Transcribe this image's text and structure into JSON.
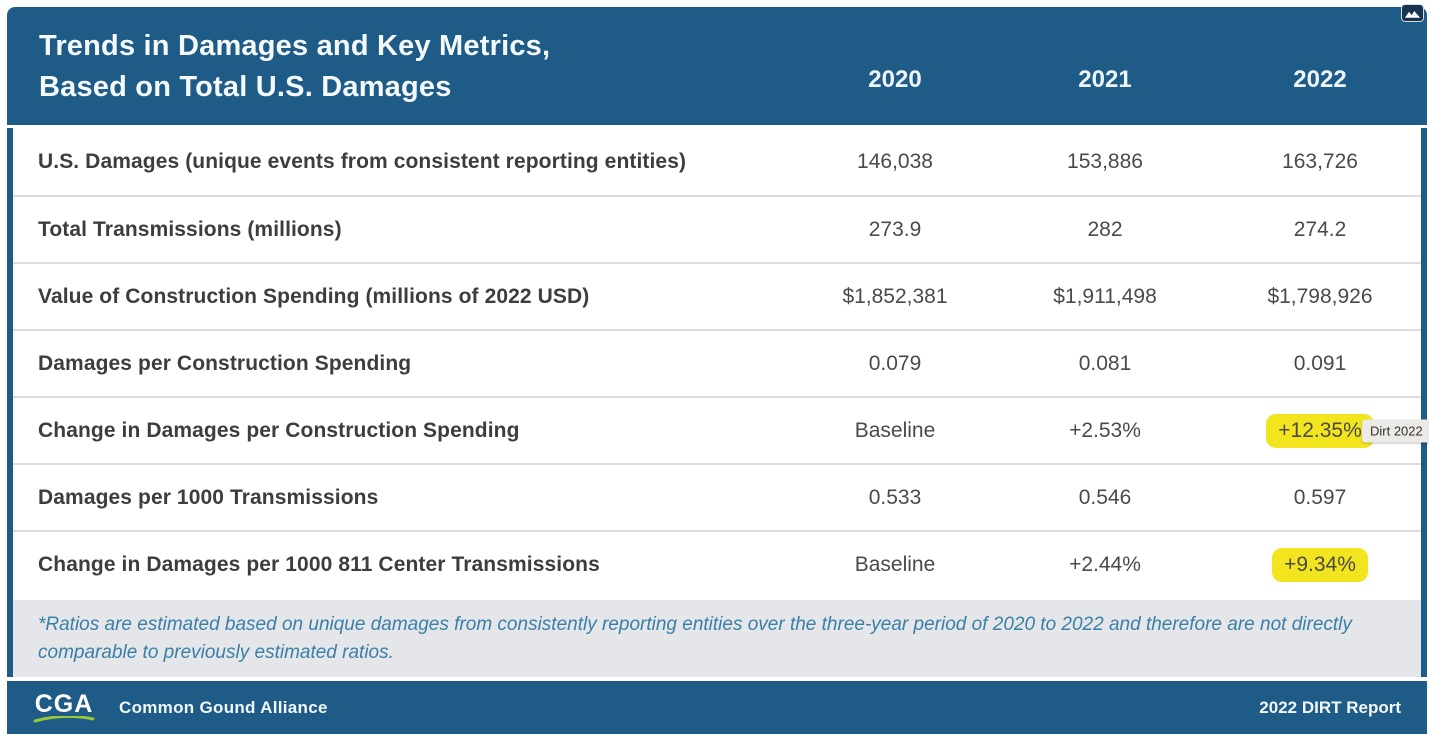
{
  "header": {
    "title_line1": "Trends in Damages and Key Metrics,",
    "title_line2": "Based on Total U.S. Damages",
    "years": [
      "2020",
      "2021",
      "2022"
    ]
  },
  "table": {
    "rows": [
      {
        "label": "U.S. Damages (unique events from consistent reporting entities)",
        "values": [
          "146,038",
          "153,886",
          "163,726"
        ]
      },
      {
        "label": "Total Transmissions (millions)",
        "values": [
          "273.9",
          "282",
          "274.2"
        ]
      },
      {
        "label": "Value of Construction Spending (millions of 2022 USD)",
        "values": [
          "$1,852,381",
          "$1,911,498",
          "$1,798,926"
        ]
      },
      {
        "label": "Damages per Construction Spending",
        "values": [
          "0.079",
          "0.081",
          "0.091"
        ]
      },
      {
        "label": "Change in Damages per Construction Spending",
        "values": [
          "Baseline",
          "+2.53%",
          "+12.35%"
        ],
        "highlight_col": 2,
        "annotation": "Dirt 2022"
      },
      {
        "label": "Damages per 1000 Transmissions",
        "values": [
          "0.533",
          "0.546",
          "0.597"
        ]
      },
      {
        "label": "Change in Damages per 1000 811 Center Transmissions",
        "values": [
          "Baseline",
          "+2.44%",
          "+9.34%"
        ],
        "highlight_col": 2
      }
    ]
  },
  "footnote": "*Ratios are estimated based on unique damages from consistently reporting entities over the three-year period of 2020 to 2022 and therefore are not directly comparable to previously estimated ratios.",
  "footer": {
    "logo": "CGA",
    "org": "Common Gound Alliance",
    "report": "2022 DIRT Report"
  },
  "colors": {
    "panel_blue": "#1e5b86",
    "highlight_yellow": "#f3e51d",
    "footnote_bg": "#e4e6e9",
    "footnote_text": "#3a7fa6",
    "logo_swoosh_green": "#97c93d",
    "separator": "#dcdcdc"
  }
}
